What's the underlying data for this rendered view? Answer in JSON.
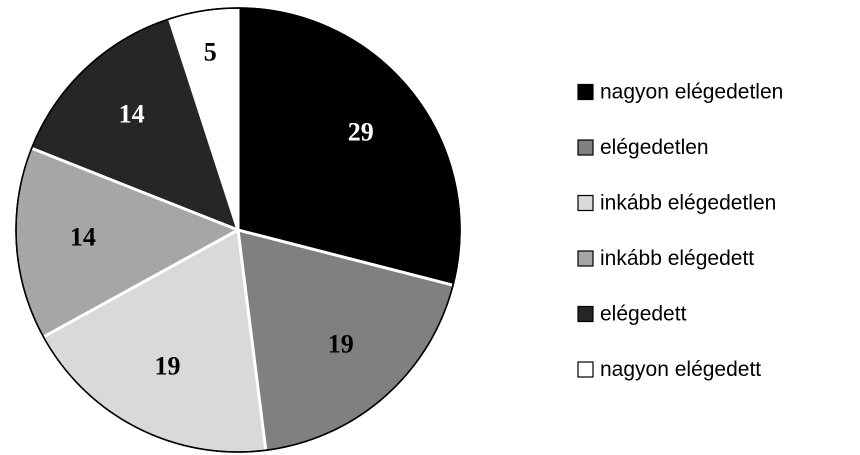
{
  "chart_data": {
    "type": "pie",
    "categories": [
      "nagyon elégedetlen",
      "elégedetlen",
      "inkább elégedetlen",
      "inkább elégedett",
      "elégedett",
      "nagyon elégedett"
    ],
    "values": [
      29,
      19,
      19,
      14,
      14,
      5
    ],
    "colors": [
      "#000000",
      "#808080",
      "#d9d9d9",
      "#a6a6a6",
      "#262626",
      "#ffffff"
    ],
    "legend": "right"
  }
}
